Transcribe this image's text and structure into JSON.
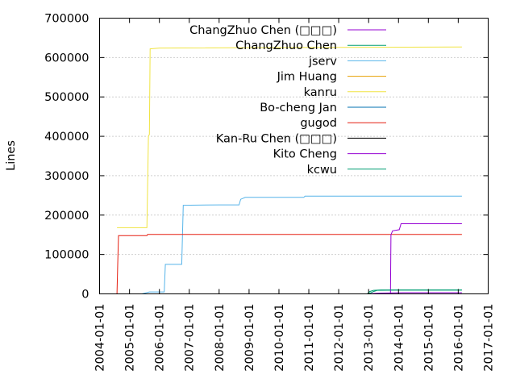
{
  "chart_data": {
    "type": "line",
    "title": "",
    "xlabel": "",
    "ylabel": "Lines",
    "ylim": [
      0,
      700000
    ],
    "xlim": [
      "2004-01-01",
      "2017-01-01"
    ],
    "y_ticks": [
      "0",
      "100000",
      "200000",
      "300000",
      "400000",
      "500000",
      "600000",
      "700000"
    ],
    "x_ticks": [
      "2004-01-01",
      "2005-01-01",
      "2006-01-01",
      "2007-01-01",
      "2008-01-01",
      "2009-01-01",
      "2010-01-01",
      "2011-01-01",
      "2012-01-01",
      "2013-01-01",
      "2014-01-01",
      "2015-01-01",
      "2016-01-01",
      "2017-01-01"
    ],
    "grid": "horizontal dotted",
    "legend_position": "top-right",
    "series": [
      {
        "name": "ChangZhuo Chen (□□□)",
        "color": "#9400d3",
        "points": [
          [
            "2013-01-05",
            0
          ],
          [
            "2013-03-01",
            1000
          ],
          [
            "2013-06-01",
            2000
          ],
          [
            "2014-03-01",
            3000
          ],
          [
            "2016-02-15",
            3000
          ]
        ]
      },
      {
        "name": "ChangZhuo Chen",
        "color": "#009e73",
        "points": [
          [
            "2012-12-20",
            0
          ],
          [
            "2013-02-01",
            3000
          ],
          [
            "2013-03-01",
            6000
          ],
          [
            "2013-04-15",
            9000
          ],
          [
            "2014-01-01",
            9500
          ],
          [
            "2016-02-15",
            9500
          ]
        ]
      },
      {
        "name": "jserv",
        "color": "#56b4e9",
        "points": [
          [
            "2005-06-01",
            0
          ],
          [
            "2005-09-01",
            5000
          ],
          [
            "2005-10-01",
            5000
          ],
          [
            "2006-03-01",
            5000
          ],
          [
            "2006-03-15",
            75000
          ],
          [
            "2006-10-01",
            75000
          ],
          [
            "2006-10-20",
            225000
          ],
          [
            "2008-01-01",
            226000
          ],
          [
            "2008-09-01",
            226000
          ],
          [
            "2008-09-20",
            240000
          ],
          [
            "2008-11-15",
            245000
          ],
          [
            "2010-11-01",
            245000
          ],
          [
            "2010-11-15",
            248000
          ],
          [
            "2016-02-15",
            248000
          ]
        ]
      },
      {
        "name": "Jim Huang",
        "color": "#e69f00",
        "points": [
          [
            "2013-01-01",
            0
          ],
          [
            "2016-02-15",
            0
          ]
        ]
      },
      {
        "name": "kanru",
        "color": "#f0e442",
        "points": [
          [
            "2004-08-01",
            168000
          ],
          [
            "2005-08-01",
            168000
          ],
          [
            "2005-08-20",
            400000
          ],
          [
            "2005-09-01",
            405000
          ],
          [
            "2005-09-10",
            622000
          ],
          [
            "2006-01-01",
            624000
          ],
          [
            "2016-02-15",
            627000
          ]
        ]
      },
      {
        "name": "Bo-cheng Jan",
        "color": "#0072b2",
        "points": [
          [
            "2013-01-01",
            0
          ],
          [
            "2016-02-15",
            0
          ]
        ]
      },
      {
        "name": "gugod",
        "color": "#e51e10",
        "points": [
          [
            "2004-08-01",
            0
          ],
          [
            "2004-08-10",
            75000
          ],
          [
            "2004-08-20",
            148000
          ],
          [
            "2005-08-01",
            148000
          ],
          [
            "2005-08-10",
            151000
          ],
          [
            "2016-02-15",
            151000
          ]
        ]
      },
      {
        "name": "Kan-Ru Chen (□□□)",
        "color": "#000000",
        "points": [
          [
            "2013-01-01",
            0
          ],
          [
            "2016-02-15",
            0
          ]
        ]
      },
      {
        "name": "Kito Cheng",
        "color": "#9400d3",
        "points": [
          [
            "2013-09-25",
            0
          ],
          [
            "2013-10-01",
            150000
          ],
          [
            "2013-10-20",
            160000
          ],
          [
            "2014-01-10",
            163000
          ],
          [
            "2014-02-01",
            178000
          ],
          [
            "2016-02-15",
            178000
          ]
        ]
      },
      {
        "name": "kcwu",
        "color": "#009e73",
        "points": [
          [
            "2012-12-15",
            0
          ],
          [
            "2013-01-15",
            6000
          ],
          [
            "2013-03-01",
            9000
          ],
          [
            "2013-06-01",
            10000
          ],
          [
            "2016-02-15",
            10000
          ]
        ]
      }
    ]
  }
}
